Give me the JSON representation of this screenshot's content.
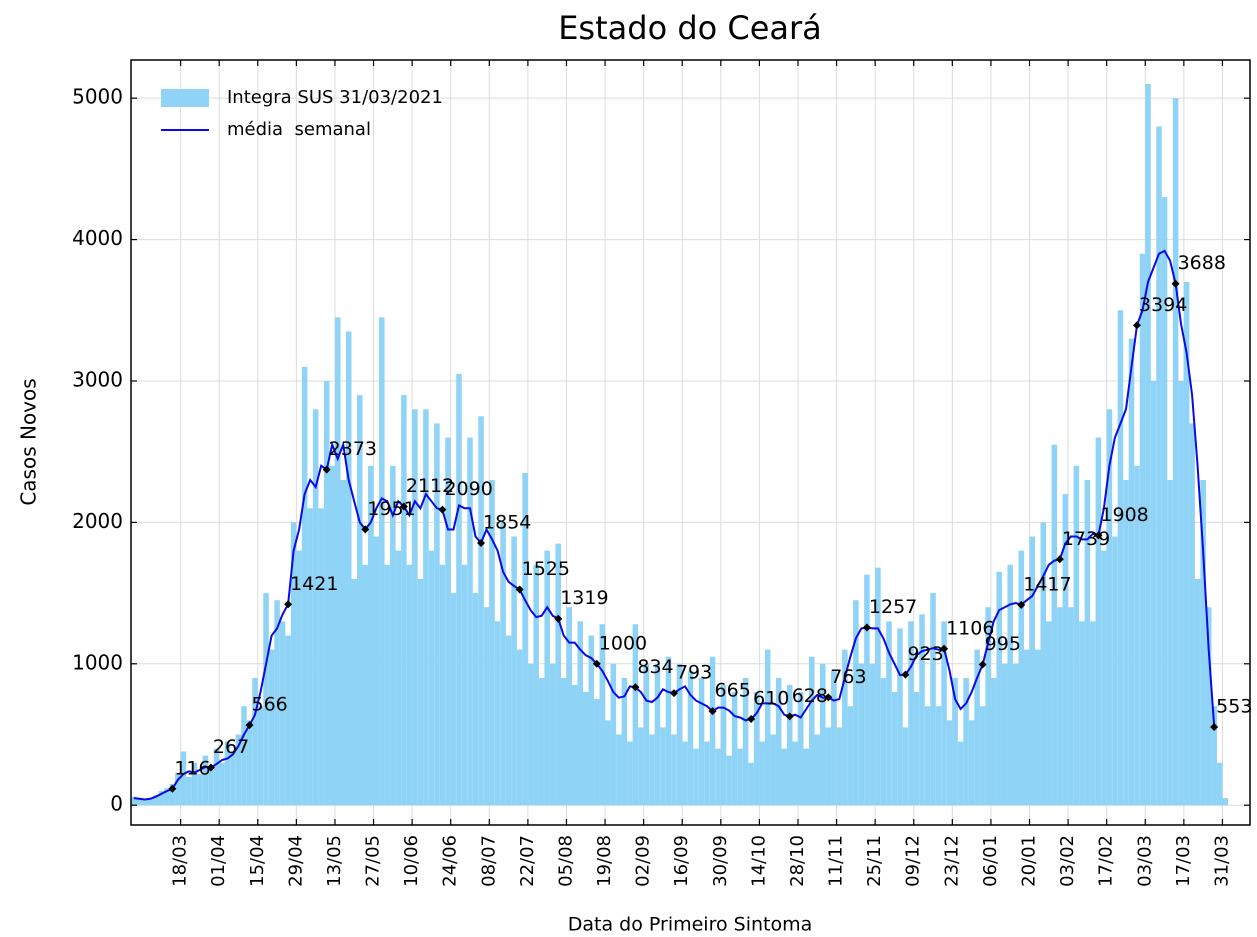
{
  "chart_data": {
    "type": "bar_line",
    "title": "Estado do Ceará",
    "x_label": "Data do Primeiro Sintoma",
    "y_label": "Casos Novos",
    "legend": "upper left",
    "grid": true,
    "xlim": [
      -18,
      388
    ],
    "ylim": [
      -140,
      5270
    ],
    "yticks": [
      0,
      1000,
      2000,
      3000,
      4000,
      5000
    ],
    "xticks": [
      {
        "value": 0,
        "label": "18/03"
      },
      {
        "value": 14,
        "label": "01/04"
      },
      {
        "value": 28,
        "label": "15/04"
      },
      {
        "value": 42,
        "label": "29/04"
      },
      {
        "value": 56,
        "label": "13/05"
      },
      {
        "value": 70,
        "label": "27/05"
      },
      {
        "value": 84,
        "label": "10/06"
      },
      {
        "value": 98,
        "label": "24/06"
      },
      {
        "value": 112,
        "label": "08/07"
      },
      {
        "value": 126,
        "label": "22/07"
      },
      {
        "value": 140,
        "label": "05/08"
      },
      {
        "value": 154,
        "label": "19/08"
      },
      {
        "value": 168,
        "label": "02/09"
      },
      {
        "value": 182,
        "label": "16/09"
      },
      {
        "value": 196,
        "label": "30/09"
      },
      {
        "value": 210,
        "label": "14/10"
      },
      {
        "value": 224,
        "label": "28/10"
      },
      {
        "value": 238,
        "label": "11/11"
      },
      {
        "value": 252,
        "label": "25/11"
      },
      {
        "value": 266,
        "label": "09/12"
      },
      {
        "value": 280,
        "label": "23/12"
      },
      {
        "value": 294,
        "label": "06/01"
      },
      {
        "value": 308,
        "label": "20/01"
      },
      {
        "value": 322,
        "label": "03/02"
      },
      {
        "value": 336,
        "label": "17/02"
      },
      {
        "value": 350,
        "label": "03/03"
      },
      {
        "value": 364,
        "label": "17/03"
      },
      {
        "value": 378,
        "label": "31/03"
      }
    ],
    "x": [
      -17,
      -15,
      -13,
      -11,
      -9,
      -7,
      -5,
      -3,
      -1,
      1,
      3,
      5,
      7,
      9,
      11,
      13,
      15,
      17,
      19,
      21,
      23,
      25,
      27,
      29,
      31,
      33,
      35,
      37,
      39,
      41,
      43,
      45,
      47,
      49,
      51,
      53,
      55,
      57,
      59,
      61,
      63,
      65,
      67,
      69,
      71,
      73,
      75,
      77,
      79,
      81,
      83,
      85,
      87,
      89,
      91,
      93,
      95,
      97,
      99,
      101,
      103,
      105,
      107,
      109,
      111,
      113,
      115,
      117,
      119,
      121,
      123,
      125,
      127,
      129,
      131,
      133,
      135,
      137,
      139,
      141,
      143,
      145,
      147,
      149,
      151,
      153,
      155,
      157,
      159,
      161,
      163,
      165,
      167,
      169,
      171,
      173,
      175,
      177,
      179,
      181,
      183,
      185,
      187,
      189,
      191,
      193,
      195,
      197,
      199,
      201,
      203,
      205,
      207,
      209,
      211,
      213,
      215,
      217,
      219,
      221,
      223,
      225,
      227,
      229,
      231,
      233,
      235,
      237,
      239,
      241,
      243,
      245,
      247,
      249,
      251,
      253,
      255,
      257,
      259,
      261,
      263,
      265,
      267,
      269,
      271,
      273,
      275,
      277,
      279,
      281,
      283,
      285,
      287,
      289,
      291,
      293,
      295,
      297,
      299,
      301,
      303,
      305,
      307,
      309,
      311,
      313,
      315,
      317,
      319,
      321,
      323,
      325,
      327,
      329,
      331,
      333,
      335,
      337,
      339,
      341,
      343,
      345,
      347,
      349,
      351,
      353,
      355,
      357,
      359,
      361,
      363,
      365,
      367,
      369,
      371,
      373,
      375,
      377,
      379
    ],
    "series": [
      {
        "name": "Integra SUS 31/03/2021",
        "kind": "bar",
        "color": "#8fd3f6",
        "values": [
          60,
          50,
          40,
          50,
          70,
          100,
          120,
          150,
          230,
          380,
          200,
          300,
          220,
          350,
          250,
          400,
          300,
          450,
          380,
          500,
          700,
          600,
          900,
          700,
          1500,
          1100,
          1450,
          1300,
          1200,
          2000,
          1800,
          3100,
          2100,
          2800,
          2100,
          3000,
          2400,
          3450,
          2300,
          3350,
          1600,
          2900,
          1700,
          2400,
          1900,
          3450,
          1700,
          2400,
          1800,
          2900,
          1700,
          2800,
          1600,
          2800,
          1800,
          2700,
          1700,
          2600,
          1500,
          3050,
          1700,
          2600,
          1500,
          2750,
          1400,
          2300,
          1300,
          2000,
          1200,
          1900,
          1100,
          2350,
          1000,
          1700,
          900,
          1800,
          1000,
          1850,
          900,
          1400,
          850,
          1300,
          800,
          1200,
          750,
          1280,
          600,
          1000,
          500,
          900,
          450,
          1280,
          550,
          1000,
          500,
          1000,
          550,
          1050,
          500,
          1000,
          450,
          950,
          400,
          900,
          450,
          1050,
          400,
          850,
          350,
          800,
          400,
          900,
          300,
          800,
          450,
          1100,
          500,
          900,
          400,
          850,
          450,
          800,
          400,
          1050,
          500,
          1000,
          550,
          950,
          550,
          1100,
          700,
          1450,
          1000,
          1630,
          1000,
          1680,
          900,
          1300,
          800,
          1250,
          550,
          1300,
          800,
          1350,
          700,
          1500,
          700,
          1300,
          600,
          900,
          450,
          900,
          600,
          1100,
          700,
          1400,
          900,
          1650,
          1000,
          1700,
          1000,
          1800,
          1100,
          1900,
          1100,
          2000,
          1300,
          2550,
          1400,
          2200,
          1400,
          2400,
          1300,
          2300,
          1300,
          2600,
          1800,
          2800,
          1900,
          3500,
          2300,
          3300,
          2400,
          3900,
          5100,
          3000,
          4800,
          4300,
          2300,
          5000,
          3000,
          3700,
          2700,
          1600,
          2300,
          1400,
          700,
          300,
          50
        ]
      },
      {
        "name": "média  semanal",
        "kind": "line",
        "color": "#0a0ae6",
        "values": [
          50,
          45,
          40,
          45,
          60,
          80,
          100,
          116,
          180,
          220,
          240,
          230,
          250,
          270,
          267,
          290,
          320,
          330,
          360,
          420,
          500,
          566,
          640,
          800,
          1000,
          1200,
          1250,
          1350,
          1421,
          1800,
          1950,
          2200,
          2300,
          2250,
          2400,
          2373,
          2550,
          2450,
          2550,
          2300,
          2150,
          2000,
          1951,
          2000,
          2100,
          2170,
          2150,
          2050,
          2150,
          2112,
          2050,
          2150,
          2100,
          2200,
          2150,
          2100,
          2090,
          1950,
          1950,
          2120,
          2100,
          2100,
          1900,
          1854,
          1950,
          1880,
          1800,
          1650,
          1580,
          1550,
          1525,
          1450,
          1380,
          1330,
          1340,
          1400,
          1340,
          1319,
          1200,
          1150,
          1150,
          1100,
          1060,
          1040,
          1000,
          950,
          880,
          800,
          760,
          770,
          840,
          834,
          800,
          740,
          730,
          760,
          820,
          800,
          793,
          820,
          840,
          780,
          740,
          720,
          700,
          665,
          690,
          690,
          670,
          630,
          620,
          600,
          610,
          650,
          720,
          720,
          720,
          700,
          640,
          628,
          640,
          620,
          680,
          740,
          780,
          760,
          763,
          740,
          750,
          900,
          1050,
          1180,
          1250,
          1257,
          1250,
          1250,
          1180,
          1080,
          1000,
          920,
          923,
          980,
          1060,
          1090,
          1100,
          1110,
          1100,
          1106,
          950,
          750,
          680,
          720,
          800,
          900,
          995,
          1150,
          1300,
          1380,
          1400,
          1420,
          1430,
          1417,
          1450,
          1480,
          1550,
          1620,
          1700,
          1730,
          1739,
          1850,
          1900,
          1900,
          1880,
          1880,
          1920,
          1908,
          2100,
          2400,
          2600,
          2700,
          2800,
          3100,
          3394,
          3500,
          3700,
          3800,
          3900,
          3920,
          3850,
          3688,
          3400,
          3200,
          2900,
          2400,
          1800,
          1100,
          553,
          null,
          null
        ]
      }
    ],
    "markers": {
      "color": "#000000",
      "x": [
        -3,
        11,
        25,
        39,
        53,
        67,
        81,
        95,
        109,
        123,
        137,
        151,
        165,
        179,
        193,
        207,
        221,
        235,
        249,
        263,
        277,
        291,
        305,
        319,
        333,
        347,
        361,
        375
      ],
      "values": [
        116,
        267,
        566,
        1421,
        2373,
        1951,
        2112,
        2090,
        1854,
        1525,
        1319,
        1000,
        834,
        793,
        665,
        610,
        628,
        763,
        1257,
        923,
        1106,
        995,
        1417,
        1739,
        1908,
        3394,
        3688,
        553
      ]
    }
  }
}
